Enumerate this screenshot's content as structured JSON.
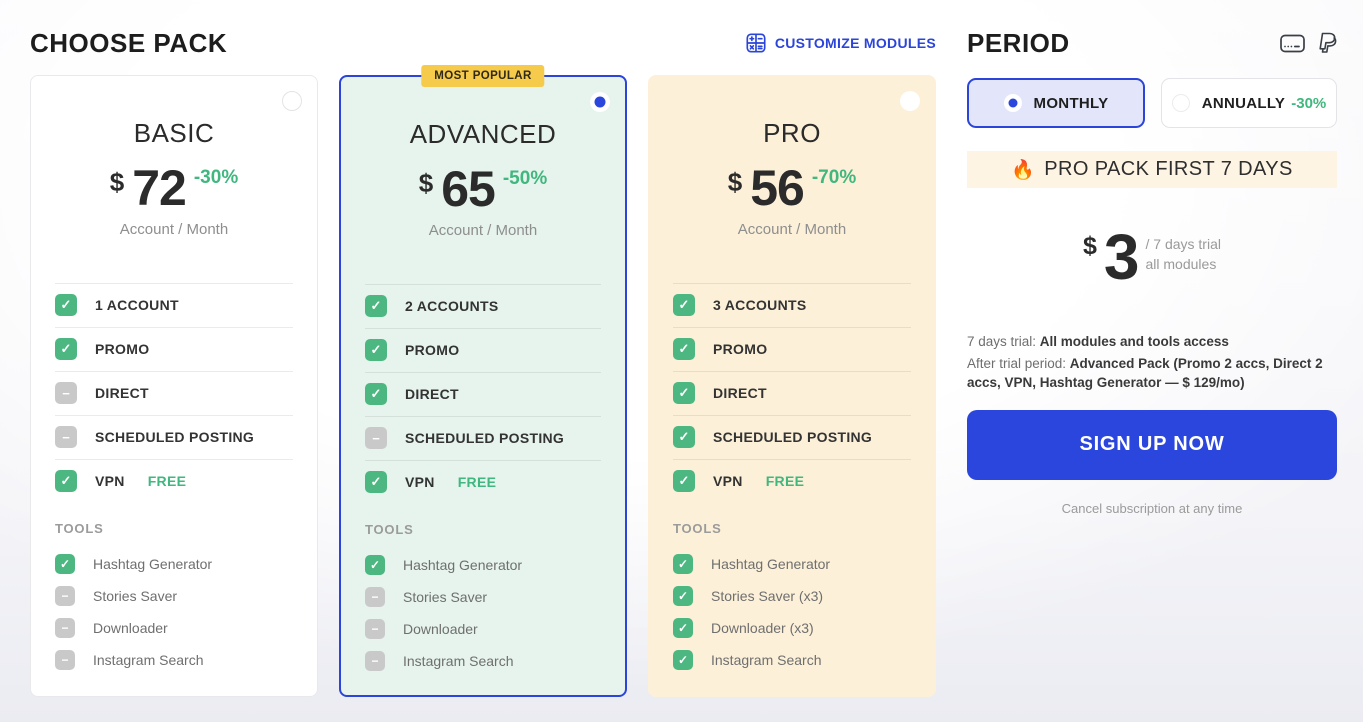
{
  "header": {
    "choose_pack_title": "CHOOSE PACK",
    "customize_modules_label": "CUSTOMIZE MODULES"
  },
  "colors": {
    "accent_blue": "#2b44d9",
    "button_blue": "#2b46dd",
    "check_green": "#4cb781",
    "text_green": "#3fb77e",
    "badge_yellow": "#f6ca4b",
    "mint_card": "#e6f4ed",
    "cream_card": "#fcf0d8",
    "banner_cream": "#fdf4e4"
  },
  "packs": [
    {
      "name": "BASIC",
      "theme": "plain",
      "selected": false,
      "badge": "",
      "currency": "$",
      "price": "72",
      "discount": "-30%",
      "per": "Account / Month",
      "features": [
        {
          "label": "1 ACCOUNT",
          "suffix": "",
          "checked": true
        },
        {
          "label": "PROMO",
          "suffix": "",
          "checked": true
        },
        {
          "label": "DIRECT",
          "suffix": "",
          "checked": false
        },
        {
          "label": "SCHEDULED POSTING",
          "suffix": "",
          "checked": false
        },
        {
          "label": "VPN",
          "suffix": "FREE",
          "checked": true
        }
      ],
      "tools_title": "TOOLS",
      "tools": [
        {
          "label": "Hashtag Generator",
          "checked": true
        },
        {
          "label": "Stories Saver",
          "checked": false
        },
        {
          "label": "Downloader",
          "checked": false
        },
        {
          "label": "Instagram Search",
          "checked": false
        }
      ]
    },
    {
      "name": "ADVANCED",
      "theme": "mint",
      "selected": true,
      "badge": "MOST POPULAR",
      "currency": "$",
      "price": "65",
      "discount": "-50%",
      "per": "Account / Month",
      "features": [
        {
          "label": "2 ACCOUNTS",
          "suffix": "",
          "checked": true
        },
        {
          "label": "PROMO",
          "suffix": "",
          "checked": true
        },
        {
          "label": "DIRECT",
          "suffix": "",
          "checked": true
        },
        {
          "label": "SCHEDULED POSTING",
          "suffix": "",
          "checked": false
        },
        {
          "label": "VPN",
          "suffix": "FREE",
          "checked": true
        }
      ],
      "tools_title": "TOOLS",
      "tools": [
        {
          "label": "Hashtag Generator",
          "checked": true
        },
        {
          "label": "Stories Saver",
          "checked": false
        },
        {
          "label": "Downloader",
          "checked": false
        },
        {
          "label": "Instagram Search",
          "checked": false
        }
      ]
    },
    {
      "name": "PRO",
      "theme": "cream",
      "selected": false,
      "badge": "",
      "currency": "$",
      "price": "56",
      "discount": "-70%",
      "per": "Account / Month",
      "features": [
        {
          "label": "3 ACCOUNTS",
          "suffix": "",
          "checked": true
        },
        {
          "label": "PROMO",
          "suffix": "",
          "checked": true
        },
        {
          "label": "DIRECT",
          "suffix": "",
          "checked": true
        },
        {
          "label": "SCHEDULED POSTING",
          "suffix": "",
          "checked": true
        },
        {
          "label": "VPN",
          "suffix": "FREE",
          "checked": true
        }
      ],
      "tools_title": "TOOLS",
      "tools": [
        {
          "label": "Hashtag Generator",
          "checked": true
        },
        {
          "label": "Stories Saver (x3)",
          "checked": true
        },
        {
          "label": "Downloader (x3)",
          "checked": true
        },
        {
          "label": "Instagram Search",
          "checked": true
        }
      ]
    }
  ],
  "period": {
    "title": "PERIOD",
    "options": [
      {
        "label": "MONTHLY",
        "discount": "",
        "selected": true
      },
      {
        "label": "ANNUALLY",
        "discount": "-30%",
        "selected": false
      }
    ],
    "promo_banner": {
      "emoji": "🔥",
      "text": "PRO PACK FIRST 7 DAYS"
    },
    "trial_price": {
      "currency": "$",
      "amount": "3",
      "line1": "/ 7 days trial",
      "line2": "all modules"
    },
    "notes": {
      "trial_prefix": "7 days trial: ",
      "trial_bold": "All modules and tools access",
      "after_prefix": "After trial period: ",
      "after_bold": "Advanced Pack (Promo 2 accs, Direct 2 accs, VPN, Hashtag Generator — $ 129/mo)"
    },
    "signup_label": "SIGN UP NOW",
    "cancel_note": "Cancel subscription at any time"
  }
}
